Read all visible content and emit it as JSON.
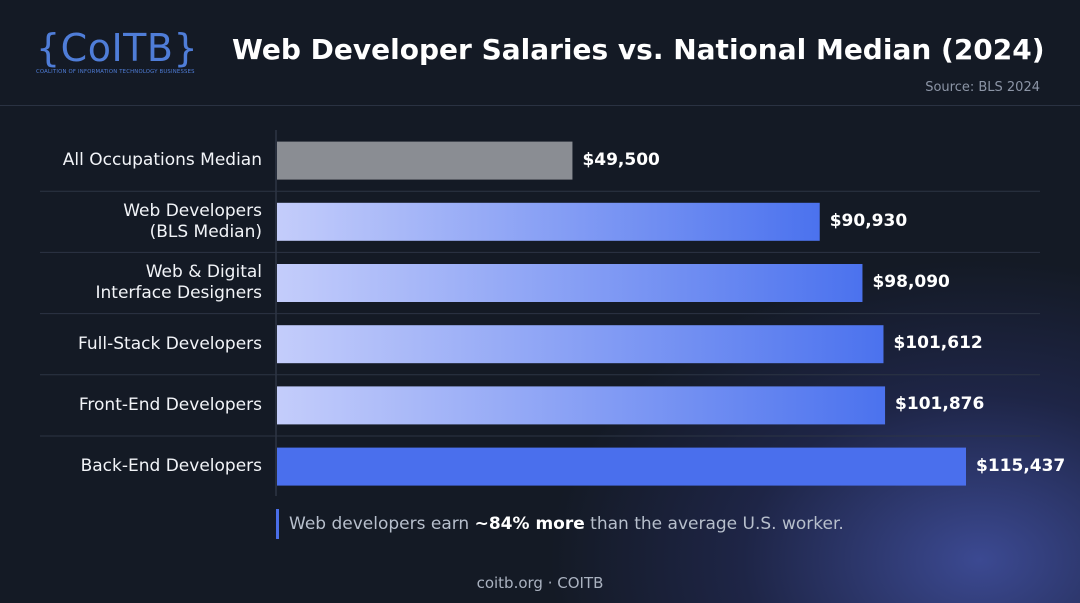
{
  "logo": {
    "mark": "{CoITB}",
    "tagline": "COALITION OF INFORMATION TECHNOLOGY BUSINESSES"
  },
  "header": {
    "title": "Web Developer Salaries vs. National Median (2024)",
    "source": "Source: BLS 2024"
  },
  "chart_data": {
    "type": "bar",
    "orientation": "horizontal",
    "title": "Web Developer Salaries vs. National Median (2024)",
    "categories": [
      "All Occupations Median",
      "Web Developers\n(BLS Median)",
      "Web & Digital\nInterface Designers",
      "Full-Stack Developers",
      "Front-End Developers",
      "Back-End Developers"
    ],
    "values": [
      49500,
      90930,
      98090,
      101612,
      101876,
      115437
    ],
    "value_labels": [
      "$49,500",
      "$90,930",
      "$98,090",
      "$101,612",
      "$101,876",
      "$115,437"
    ],
    "xlim": [
      0,
      115437
    ],
    "grid": false,
    "colors": {
      "baseline": "#8a8d93",
      "gradient_start": "#c4cdfb",
      "gradient_end": "#4b72ee",
      "highlight": "#4a6fed"
    }
  },
  "callout": {
    "prefix": "Web developers earn ",
    "highlight": "~84% more",
    "suffix": " than the average U.S. worker."
  },
  "footer": {
    "text": "coitb.org · COITB"
  }
}
